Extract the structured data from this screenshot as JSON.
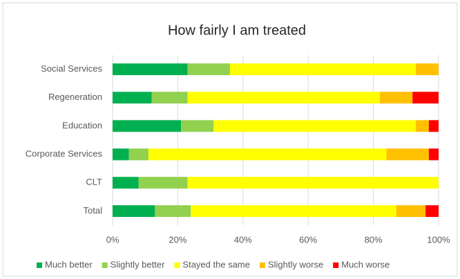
{
  "chart_data": {
    "type": "stacked-bar-horizontal",
    "title": "How fairly I am treated",
    "categories": [
      "Social Services",
      "Regeneration",
      "Education",
      "Corporate Services",
      "CLT",
      "Total"
    ],
    "series": [
      {
        "name": "Much better",
        "color": "#00b050",
        "values": [
          23,
          12,
          21,
          5,
          8,
          13
        ]
      },
      {
        "name": "Slightly better",
        "color": "#92d050",
        "values": [
          13,
          11,
          10,
          6,
          15,
          11
        ]
      },
      {
        "name": "Stayed the same",
        "color": "#ffff00",
        "values": [
          57,
          59,
          62,
          73,
          77,
          63
        ]
      },
      {
        "name": "Slightly worse",
        "color": "#ffc000",
        "values": [
          7,
          10,
          4,
          13,
          0,
          9
        ]
      },
      {
        "name": "Much worse",
        "color": "#ff0000",
        "values": [
          0,
          8,
          3,
          3,
          0,
          4
        ]
      }
    ],
    "xlim": [
      0,
      100
    ],
    "xticks": [
      {
        "value": 0,
        "label": "0%"
      },
      {
        "value": 20,
        "label": "20%"
      },
      {
        "value": 40,
        "label": "40%"
      },
      {
        "value": 60,
        "label": "60%"
      },
      {
        "value": 80,
        "label": "80%"
      },
      {
        "value": 100,
        "label": "100%"
      }
    ],
    "grid": true,
    "legend": "bottom"
  }
}
